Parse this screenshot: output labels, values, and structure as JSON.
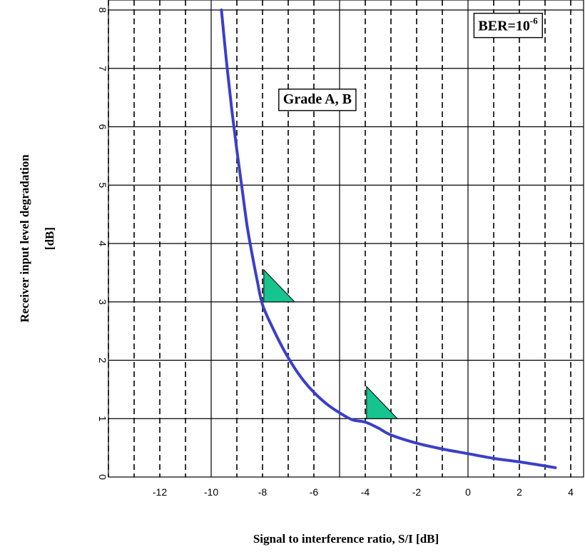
{
  "chart_data": {
    "type": "line",
    "title": "",
    "xlabel": "Signal to interference ratio, S/I [dB]",
    "ylabel": "Receiver input level degradation",
    "ylabel_unit": "[dB]",
    "xlim": [
      -14,
      4.5
    ],
    "ylim": [
      0,
      8
    ],
    "x_ticks": [
      -12,
      -10,
      -8,
      -6,
      -4,
      -2,
      0,
      2,
      4
    ],
    "y_ticks": [
      0,
      1,
      2,
      3,
      4,
      5,
      6,
      7,
      8
    ],
    "grid": {
      "solid_vertical": [
        -10,
        -5,
        0,
        5
      ],
      "dashed_vertical_step": 1,
      "solid_horizontal_step": 1
    },
    "series": [
      {
        "name": "",
        "color": "#3a3fc8",
        "x": [
          -9.6,
          -9.4,
          -9.2,
          -9.0,
          -8.8,
          -8.6,
          -8.4,
          -8.2,
          -8.0,
          -7.6,
          -7.2,
          -6.8,
          -6.4,
          -6.0,
          -5.5,
          -5.0,
          -4.5,
          -4.0,
          -3.5,
          -3.0,
          -2.0,
          -1.0,
          0.0,
          1.0,
          2.0,
          3.0,
          3.4
        ],
        "y": [
          8.0,
          7.1,
          6.3,
          5.6,
          4.95,
          4.3,
          3.8,
          3.35,
          2.95,
          2.55,
          2.2,
          1.9,
          1.65,
          1.45,
          1.25,
          1.1,
          0.98,
          0.94,
          0.84,
          0.72,
          0.58,
          0.48,
          0.4,
          0.32,
          0.26,
          0.19,
          0.16
        ]
      }
    ],
    "markers": [
      {
        "shape": "right-triangle",
        "color": "#16c48f",
        "x": -7.95,
        "y": 3.0,
        "width": 1.2,
        "height": 0.55
      },
      {
        "shape": "right-triangle",
        "color": "#16c48f",
        "x": -3.95,
        "y": 1.0,
        "width": 1.2,
        "height": 0.55
      }
    ],
    "annotations": [
      {
        "id": "ber",
        "text": "BER=10",
        "superscript": "-6",
        "x": 0.4,
        "y": 7.65
      },
      {
        "id": "grade",
        "text": "Grade A, B",
        "x": -7.2,
        "y": 6.4
      }
    ]
  }
}
